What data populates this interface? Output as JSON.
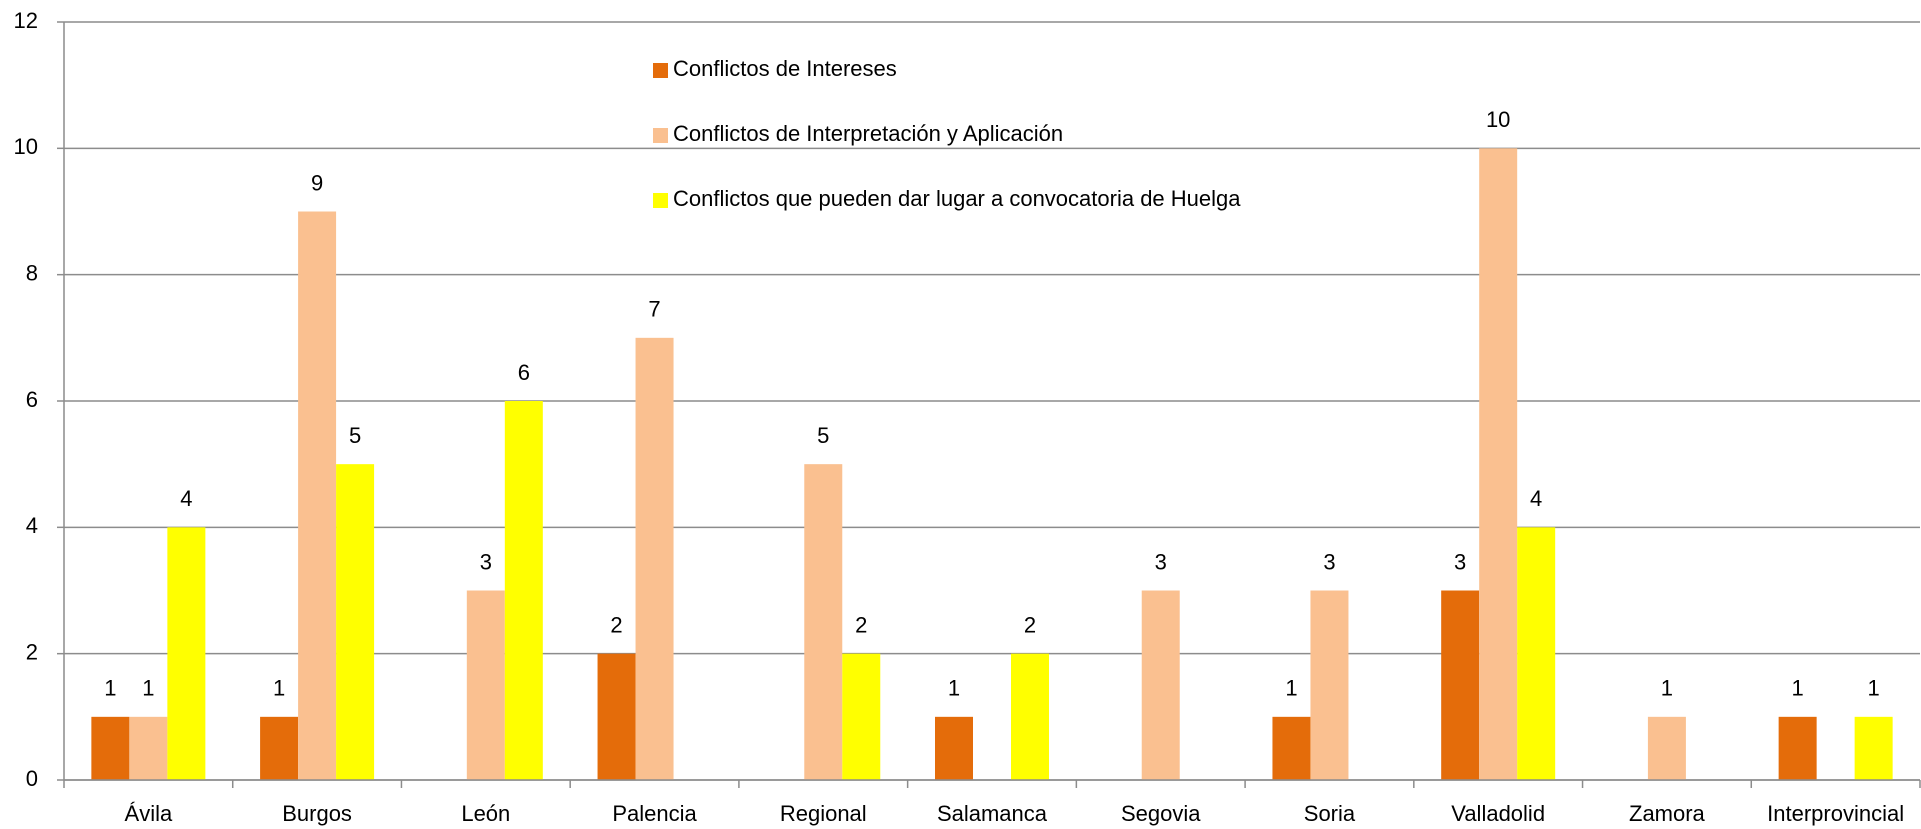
{
  "chart_data": {
    "type": "bar",
    "categories": [
      "Ávila",
      "Burgos",
      "León",
      "Palencia",
      "Regional",
      "Salamanca",
      "Segovia",
      "Soria",
      "Valladolid",
      "Zamora",
      "Interprovincial"
    ],
    "series": [
      {
        "name": "Conflictos de Intereses",
        "color": "#e46c0a",
        "values": [
          1,
          1,
          null,
          2,
          null,
          1,
          null,
          1,
          3,
          null,
          1
        ]
      },
      {
        "name": "Conflictos de Interpretación y Aplicación",
        "color": "#fac090",
        "values": [
          1,
          9,
          3,
          7,
          5,
          null,
          3,
          3,
          10,
          1,
          null
        ]
      },
      {
        "name": "Conflictos que pueden dar lugar a convocatoria de Huelga",
        "color": "#ffff00",
        "values": [
          4,
          5,
          6,
          null,
          2,
          2,
          null,
          null,
          4,
          null,
          1
        ]
      }
    ],
    "ylim": [
      0,
      12
    ],
    "yticks": [
      0,
      2,
      4,
      6,
      8,
      10,
      12
    ],
    "grid": true,
    "legend": "top"
  }
}
